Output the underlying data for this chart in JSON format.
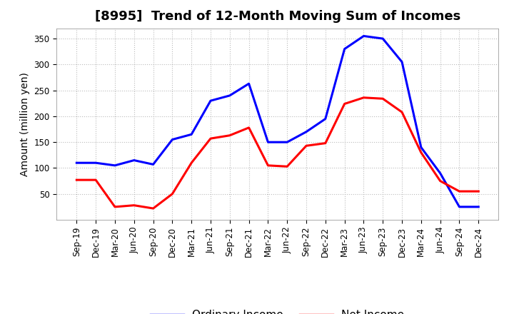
{
  "title": "[8995]  Trend of 12-Month Moving Sum of Incomes",
  "ylabel": "Amount (million yen)",
  "background_color": "#ffffff",
  "plot_bg_color": "#ffffff",
  "grid_color": "#aaaaaa",
  "title_fontsize": 13,
  "label_fontsize": 10,
  "tick_fontsize": 8.5,
  "legend_fontsize": 11,
  "ylim": [
    0,
    370
  ],
  "yticks": [
    50,
    100,
    150,
    200,
    250,
    300,
    350
  ],
  "x_labels": [
    "Sep-19",
    "Dec-19",
    "Mar-20",
    "Jun-20",
    "Sep-20",
    "Dec-20",
    "Mar-21",
    "Jun-21",
    "Sep-21",
    "Dec-21",
    "Mar-22",
    "Jun-22",
    "Sep-22",
    "Dec-22",
    "Mar-23",
    "Jun-23",
    "Sep-23",
    "Dec-23",
    "Mar-24",
    "Jun-24",
    "Sep-24",
    "Dec-24"
  ],
  "ordinary_income": [
    110,
    110,
    105,
    115,
    107,
    155,
    165,
    230,
    240,
    263,
    150,
    150,
    170,
    195,
    330,
    355,
    350,
    305,
    140,
    90,
    25,
    25
  ],
  "net_income": [
    77,
    77,
    25,
    28,
    22,
    50,
    110,
    157,
    163,
    178,
    105,
    103,
    143,
    148,
    224,
    236,
    234,
    208,
    130,
    75,
    55,
    55
  ],
  "ordinary_color": "#0000ff",
  "net_color": "#ff0000",
  "line_width": 2.2
}
